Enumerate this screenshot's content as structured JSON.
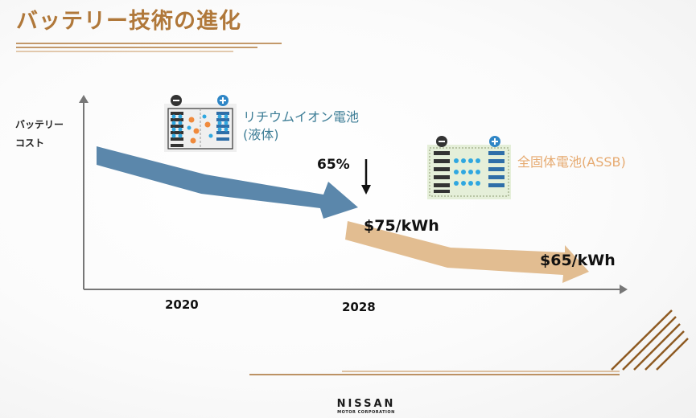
{
  "slide": {
    "title": "バッテリー技術の進化",
    "y_axis_label_line1": "バッテリー",
    "y_axis_label_line2": "コスト",
    "years": [
      "2020",
      "2028"
    ],
    "reduction_label": "65%",
    "price_2028": "$75/kWh",
    "price_future": "$65/kWh",
    "liquid_battery_label_line1": "リチウムイオン電池",
    "liquid_battery_label_line2": "(液体)",
    "solid_battery_label": "全固体電池(ASSB)",
    "brand_name": "NISSAN",
    "brand_subtitle": "MOTOR CORPORATION"
  },
  "colors": {
    "title": "#b0783a",
    "liquid_arrow": "#5b87ab",
    "solid_arrow": "#e2bd91",
    "liquid_label": "#3d7d96",
    "solid_label": "#e6aa70"
  },
  "icons": [
    "minus-terminal-icon",
    "plus-terminal-icon",
    "liquid-battery-icon",
    "solid-state-battery-icon",
    "down-arrow-icon",
    "nissan-logo"
  ]
}
